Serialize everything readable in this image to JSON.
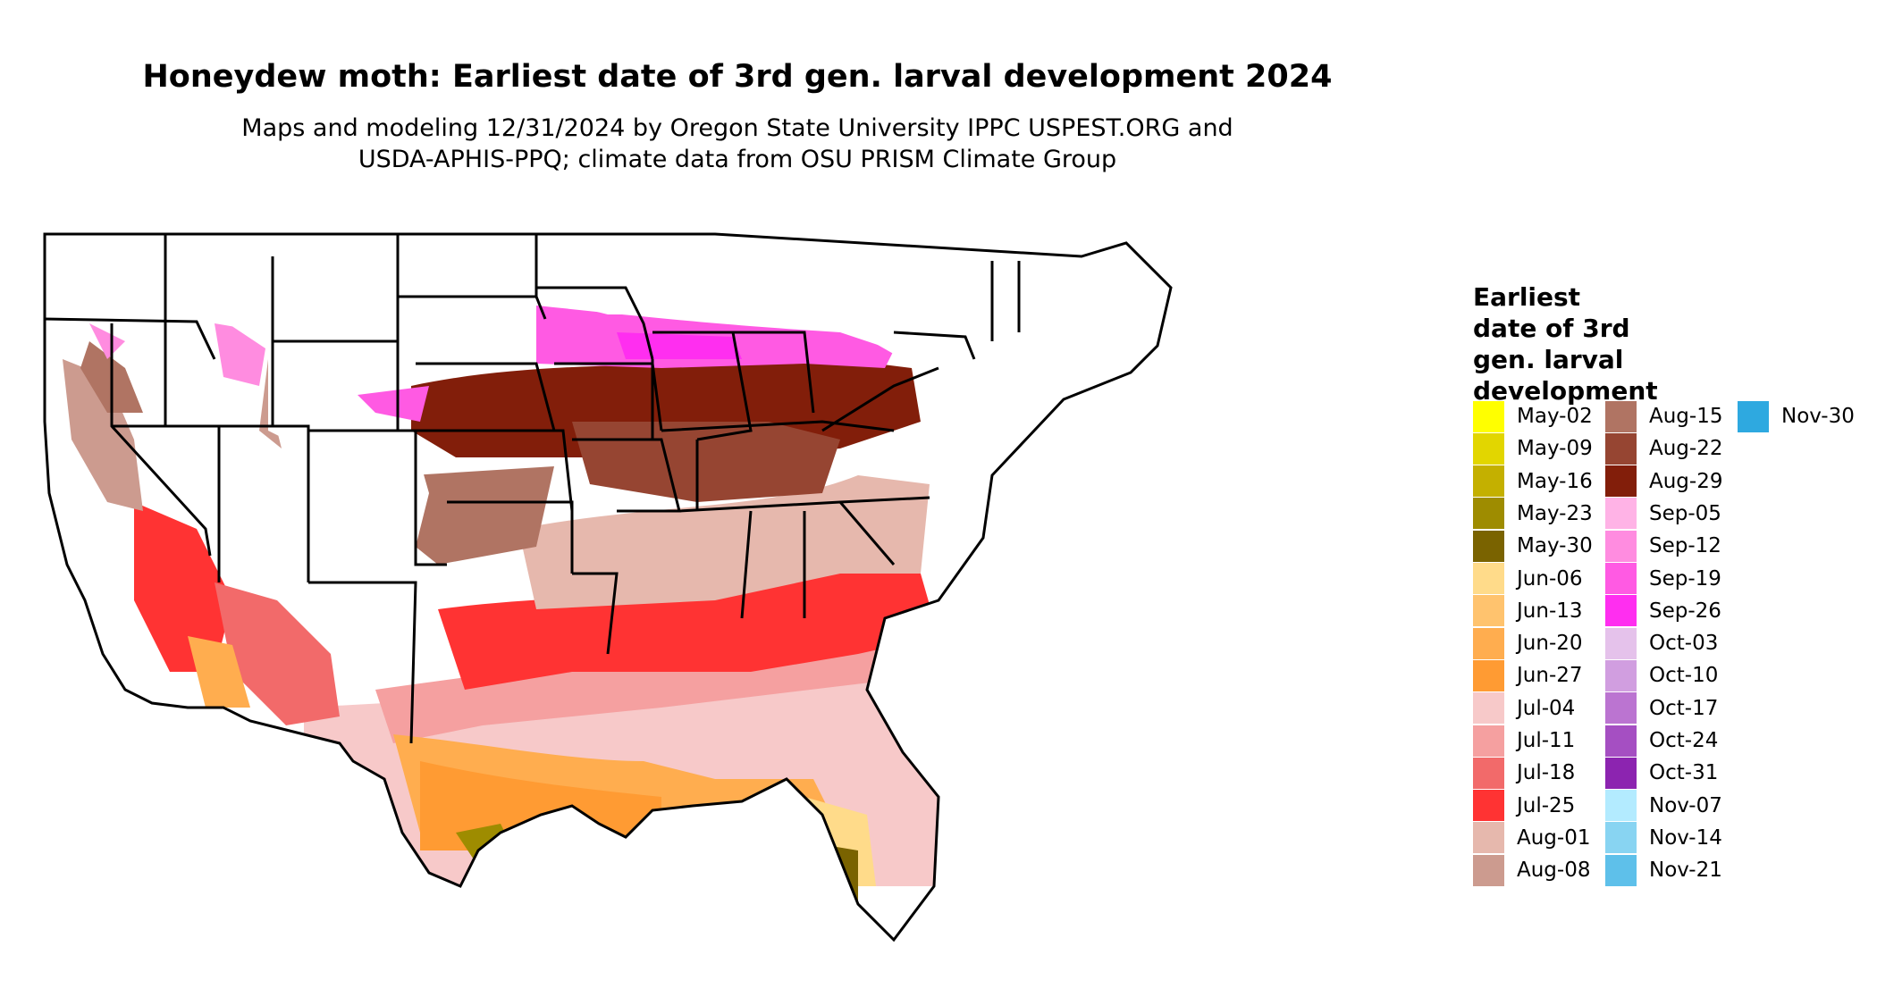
{
  "title": "Honeydew moth: Earliest date of 3rd gen. larval development 2024",
  "subtitle_lines": [
    "Maps and modeling 12/31/2024 by Oregon State University IPPC USPEST.ORG and",
    "USDA-APHIS-PPQ; climate data from OSU PRISM Climate Group"
  ],
  "legend": {
    "title_lines": [
      "Earliest",
      "date of 3rd",
      "gen. larval",
      "development"
    ],
    "columns": [
      [
        {
          "label": "May-02",
          "color": "#ffff00"
        },
        {
          "label": "May-09",
          "color": "#e2d600"
        },
        {
          "label": "May-16",
          "color": "#c4b000"
        },
        {
          "label": "May-23",
          "color": "#9e8c00"
        },
        {
          "label": "May-30",
          "color": "#7a6300"
        },
        {
          "label": "Jun-06",
          "color": "#ffdb8a"
        },
        {
          "label": "Jun-13",
          "color": "#ffc36e"
        },
        {
          "label": "Jun-20",
          "color": "#ffad4f"
        },
        {
          "label": "Jun-27",
          "color": "#ff9b33"
        },
        {
          "label": "Jul-04",
          "color": "#f7c9c9"
        },
        {
          "label": "Jul-11",
          "color": "#f5a0a0"
        },
        {
          "label": "Jul-18",
          "color": "#f26a6a"
        },
        {
          "label": "Jul-25",
          "color": "#ff3333"
        },
        {
          "label": "Aug-01",
          "color": "#e6b8ad"
        },
        {
          "label": "Aug-08",
          "color": "#cc9b8f"
        }
      ],
      [
        {
          "label": "Aug-15",
          "color": "#b07463"
        },
        {
          "label": "Aug-22",
          "color": "#964532"
        },
        {
          "label": "Aug-29",
          "color": "#821e0a"
        },
        {
          "label": "Sep-05",
          "color": "#ffb3e6"
        },
        {
          "label": "Sep-12",
          "color": "#ff8ce0"
        },
        {
          "label": "Sep-19",
          "color": "#ff5ae3"
        },
        {
          "label": "Sep-26",
          "color": "#ff2ef0"
        },
        {
          "label": "Oct-03",
          "color": "#e5c2eb"
        },
        {
          "label": "Oct-10",
          "color": "#d19ee0"
        },
        {
          "label": "Oct-17",
          "color": "#bb74d1"
        },
        {
          "label": "Oct-24",
          "color": "#a54fc2"
        },
        {
          "label": "Oct-31",
          "color": "#8c24b0"
        },
        {
          "label": "Nov-07",
          "color": "#b3ebff"
        },
        {
          "label": "Nov-14",
          "color": "#88d4f2"
        },
        {
          "label": "Nov-21",
          "color": "#5ec0ea"
        }
      ],
      [
        {
          "label": "Nov-30",
          "color": "#2ea9e0"
        }
      ]
    ]
  }
}
